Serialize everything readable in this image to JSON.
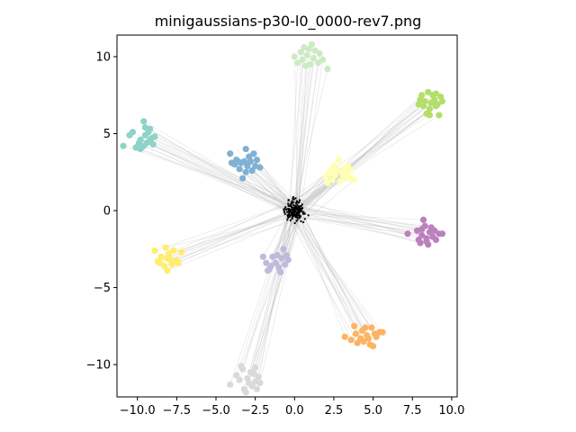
{
  "chart_data": {
    "type": "scatter",
    "title": "minigaussians-p30-l0_0000-rev7.png",
    "xlabel": "",
    "ylabel": "",
    "xlim": [
      -11.3,
      10.35
    ],
    "ylim": [
      -12.1,
      11.4
    ],
    "xticks": [
      -10.0,
      -7.5,
      -5.0,
      -2.5,
      0.0,
      2.5,
      5.0,
      7.5,
      10.0
    ],
    "xtick_labels": [
      "−10.0",
      "−7.5",
      "−5.0",
      "−2.5",
      "0.0",
      "2.5",
      "5.0",
      "7.5",
      "10.0"
    ],
    "yticks": [
      -10,
      -5,
      0,
      5,
      10
    ],
    "ytick_labels": [
      "−10",
      "−5",
      "0",
      "5",
      "10"
    ],
    "grid": false,
    "legend": "none",
    "center_color": "#000000",
    "link_color": "#b4b4b4",
    "clusters": [
      {
        "color": "#8dd3c7",
        "points": [
          [
            -10.9,
            4.2
          ],
          [
            -10.5,
            4.9
          ],
          [
            -10.3,
            5.1
          ],
          [
            -10.1,
            4.1
          ],
          [
            -9.9,
            4.4
          ],
          [
            -9.8,
            4.6
          ],
          [
            -9.6,
            4.2
          ],
          [
            -9.5,
            4.9
          ],
          [
            -9.5,
            5.4
          ],
          [
            -9.4,
            4.4
          ],
          [
            -9.3,
            5.1
          ],
          [
            -9.2,
            5.3
          ],
          [
            -9.1,
            4.7
          ],
          [
            -9.0,
            4.3
          ],
          [
            -8.9,
            4.8
          ],
          [
            -9.6,
            5.8
          ],
          [
            -9.8,
            4.0
          ],
          [
            -9.2,
            4.6
          ]
        ]
      },
      {
        "color": "#bebada",
        "points": [
          [
            -2.0,
            -3.0
          ],
          [
            -1.8,
            -3.4
          ],
          [
            -1.6,
            -3.8
          ],
          [
            -1.4,
            -3.0
          ],
          [
            -1.2,
            -3.4
          ],
          [
            -1.0,
            -3.7
          ],
          [
            -0.8,
            -3.1
          ],
          [
            -0.6,
            -3.5
          ],
          [
            -0.5,
            -2.9
          ],
          [
            -0.7,
            -2.5
          ],
          [
            -0.9,
            -4.0
          ],
          [
            -1.5,
            -3.6
          ],
          [
            -0.4,
            -3.2
          ],
          [
            -1.1,
            -2.9
          ],
          [
            -1.7,
            -3.9
          ]
        ]
      },
      {
        "color": "#ccebc5",
        "points": [
          [
            0.0,
            10.0
          ],
          [
            0.2,
            9.6
          ],
          [
            0.4,
            10.3
          ],
          [
            0.5,
            9.8
          ],
          [
            0.6,
            10.6
          ],
          [
            0.7,
            9.4
          ],
          [
            0.8,
            10.1
          ],
          [
            1.0,
            9.5
          ],
          [
            1.1,
            10.8
          ],
          [
            1.2,
            9.9
          ],
          [
            1.3,
            10.4
          ],
          [
            1.5,
            9.6
          ],
          [
            1.6,
            10.2
          ],
          [
            1.8,
            9.8
          ],
          [
            2.1,
            9.2
          ],
          [
            0.9,
            10.5
          ]
        ]
      },
      {
        "color": "#ffffb3",
        "points": [
          [
            2.0,
            2.2
          ],
          [
            2.1,
            1.8
          ],
          [
            2.3,
            2.6
          ],
          [
            2.4,
            2.0
          ],
          [
            2.5,
            2.9
          ],
          [
            2.6,
            2.3
          ],
          [
            2.7,
            2.7
          ],
          [
            2.8,
            3.3
          ],
          [
            2.9,
            1.9
          ],
          [
            3.0,
            2.5
          ],
          [
            3.1,
            2.2
          ],
          [
            3.2,
            2.8
          ],
          [
            3.3,
            2.4
          ],
          [
            3.5,
            2.1
          ],
          [
            3.6,
            2.6
          ],
          [
            3.8,
            2.0
          ],
          [
            2.2,
            2.4
          ],
          [
            3.4,
            2.9
          ]
        ]
      },
      {
        "color": "#80b1d3",
        "points": [
          [
            -4.1,
            3.7
          ],
          [
            -4.0,
            3.1
          ],
          [
            -3.8,
            3.0
          ],
          [
            -3.7,
            3.3
          ],
          [
            -3.5,
            2.7
          ],
          [
            -3.4,
            3.1
          ],
          [
            -3.3,
            2.1
          ],
          [
            -3.2,
            3.2
          ],
          [
            -3.1,
            4.0
          ],
          [
            -3.0,
            2.9
          ],
          [
            -2.9,
            3.5
          ],
          [
            -2.8,
            3.2
          ],
          [
            -2.7,
            2.6
          ],
          [
            -2.6,
            3.7
          ],
          [
            -2.5,
            2.9
          ],
          [
            -2.4,
            3.3
          ],
          [
            -2.2,
            2.8
          ],
          [
            -3.6,
            3.2
          ],
          [
            -3.1,
            2.5
          ]
        ]
      },
      {
        "color": "#b3de69",
        "points": [
          [
            7.9,
            6.9
          ],
          [
            8.0,
            7.2
          ],
          [
            8.1,
            7.5
          ],
          [
            8.2,
            6.8
          ],
          [
            8.3,
            7.1
          ],
          [
            8.4,
            6.3
          ],
          [
            8.5,
            7.7
          ],
          [
            8.6,
            6.2
          ],
          [
            8.7,
            7.0
          ],
          [
            8.8,
            7.5
          ],
          [
            8.9,
            7.2
          ],
          [
            9.0,
            7.6
          ],
          [
            9.1,
            6.9
          ],
          [
            9.2,
            6.2
          ],
          [
            9.3,
            7.4
          ],
          [
            9.4,
            7.1
          ],
          [
            8.6,
            6.6
          ],
          [
            9.0,
            6.8
          ]
        ]
      },
      {
        "color": "#bc80bd",
        "points": [
          [
            7.2,
            -1.5
          ],
          [
            7.8,
            -1.3
          ],
          [
            7.9,
            -1.9
          ],
          [
            8.0,
            -2.1
          ],
          [
            8.1,
            -1.6
          ],
          [
            8.2,
            -0.6
          ],
          [
            8.3,
            -1.0
          ],
          [
            8.4,
            -1.8
          ],
          [
            8.5,
            -2.2
          ],
          [
            8.6,
            -1.4
          ],
          [
            8.7,
            -1.1
          ],
          [
            8.8,
            -1.7
          ],
          [
            8.9,
            -1.3
          ],
          [
            9.0,
            -1.9
          ],
          [
            9.2,
            -1.5
          ],
          [
            9.4,
            -1.5
          ],
          [
            8.4,
            -2.0
          ],
          [
            8.1,
            -1.2
          ]
        ]
      },
      {
        "color": "#fdb462",
        "points": [
          [
            3.2,
            -8.2
          ],
          [
            3.6,
            -8.4
          ],
          [
            3.8,
            -7.5
          ],
          [
            3.9,
            -8.0
          ],
          [
            4.0,
            -8.6
          ],
          [
            4.2,
            -8.3
          ],
          [
            4.3,
            -7.8
          ],
          [
            4.4,
            -8.5
          ],
          [
            4.5,
            -7.6
          ],
          [
            4.6,
            -8.1
          ],
          [
            4.7,
            -8.3
          ],
          [
            4.8,
            -8.7
          ],
          [
            4.9,
            -7.6
          ],
          [
            5.0,
            -8.8
          ],
          [
            5.1,
            -8.0
          ],
          [
            5.2,
            -8.2
          ],
          [
            5.4,
            -7.9
          ],
          [
            5.6,
            -7.9
          ]
        ]
      },
      {
        "color": "#ffed6f",
        "points": [
          [
            -8.9,
            -2.6
          ],
          [
            -8.7,
            -3.3
          ],
          [
            -8.5,
            -3.0
          ],
          [
            -8.3,
            -3.6
          ],
          [
            -8.2,
            -2.4
          ],
          [
            -8.1,
            -3.9
          ],
          [
            -8.0,
            -2.8
          ],
          [
            -7.9,
            -3.2
          ],
          [
            -7.8,
            -3.5
          ],
          [
            -7.7,
            -2.6
          ],
          [
            -7.5,
            -3.2
          ],
          [
            -7.4,
            -3.4
          ],
          [
            -7.2,
            -2.7
          ],
          [
            -8.6,
            -3.4
          ],
          [
            -8.1,
            -3.1
          ]
        ]
      },
      {
        "color": "#d9d9d9",
        "points": [
          [
            -4.1,
            -11.3
          ],
          [
            -3.7,
            -10.7
          ],
          [
            -3.5,
            -11.0
          ],
          [
            -3.3,
            -10.3
          ],
          [
            -3.2,
            -11.6
          ],
          [
            -3.1,
            -11.8
          ],
          [
            -3.0,
            -10.9
          ],
          [
            -2.9,
            -11.2
          ],
          [
            -2.8,
            -10.5
          ],
          [
            -2.7,
            -11.4
          ],
          [
            -2.6,
            -10.6
          ],
          [
            -2.5,
            -11.1
          ],
          [
            -2.4,
            -11.6
          ],
          [
            -2.3,
            -10.8
          ],
          [
            -2.2,
            -11.2
          ],
          [
            -2.5,
            -10.2
          ],
          [
            -3.4,
            -10.1
          ]
        ]
      }
    ]
  }
}
